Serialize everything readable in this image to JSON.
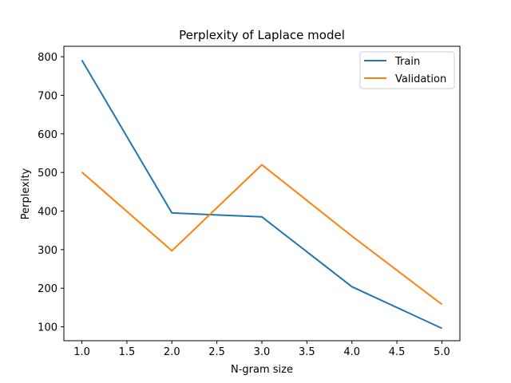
{
  "chart_data": {
    "type": "line",
    "title": "Perplexity of Laplace model",
    "xlabel": "N-gram size",
    "ylabel": "Perplexity",
    "x": [
      1.0,
      2.0,
      3.0,
      4.0,
      5.0
    ],
    "series": [
      {
        "name": "Train",
        "color": "#1f77b4",
        "values": [
          791,
          395,
          385,
          204,
          96
        ]
      },
      {
        "name": "Validation",
        "color": "#ff7f0e",
        "values": [
          501,
          297,
          520,
          335,
          158
        ]
      }
    ],
    "xlim": [
      0.8,
      5.2
    ],
    "ylim": [
      64,
      827
    ],
    "xticks": [
      1.0,
      1.5,
      2.0,
      2.5,
      3.0,
      3.5,
      4.0,
      4.5,
      5.0
    ],
    "xtick_labels": [
      "1.0",
      "1.5",
      "2.0",
      "2.5",
      "3.0",
      "3.5",
      "4.0",
      "4.5",
      "5.0"
    ],
    "yticks": [
      100,
      200,
      300,
      400,
      500,
      600,
      700,
      800
    ],
    "ytick_labels": [
      "100",
      "200",
      "300",
      "400",
      "500",
      "600",
      "700",
      "800"
    ],
    "grid": false,
    "legend": "top-right"
  }
}
